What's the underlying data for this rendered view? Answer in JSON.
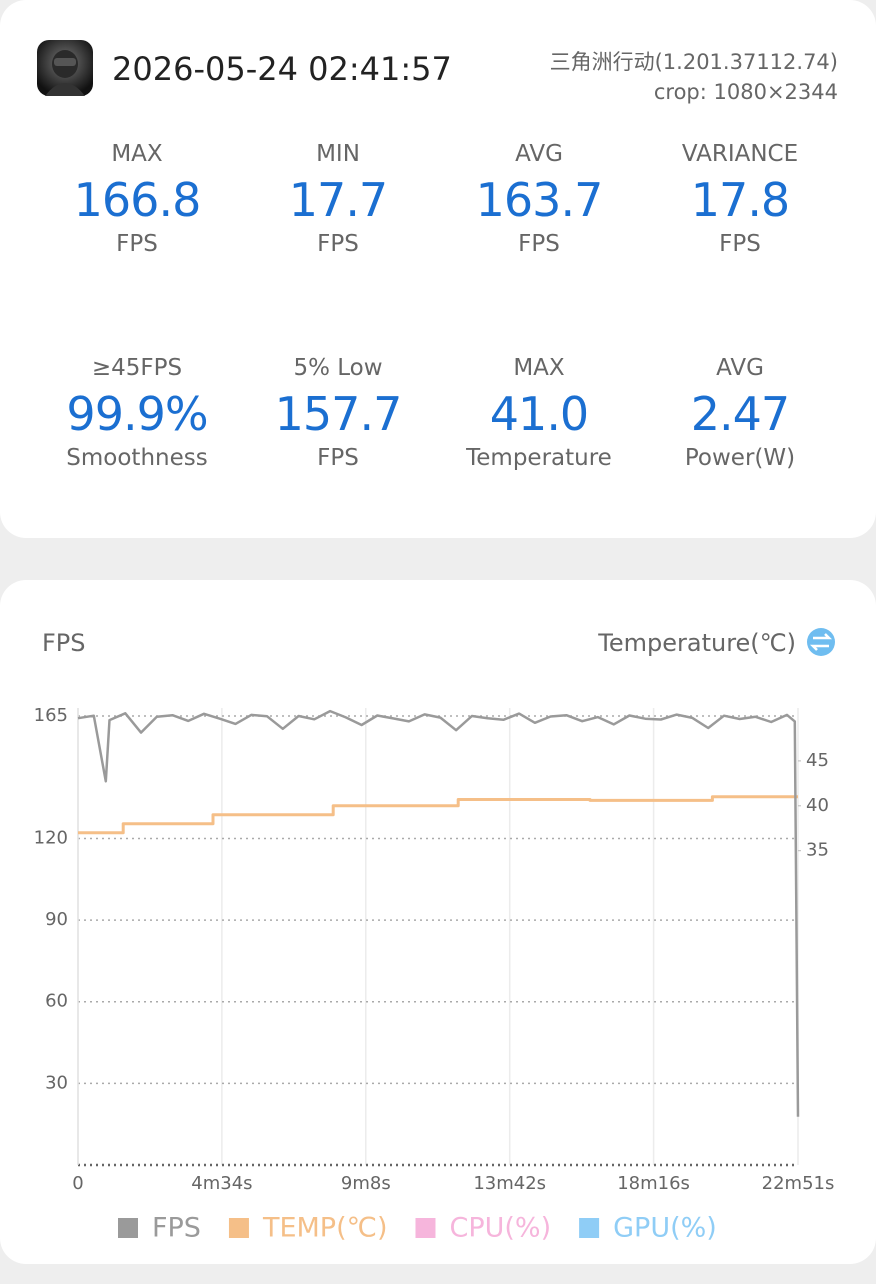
{
  "header": {
    "datetime": "2026-05-24 02:41:57",
    "app": "三角洲行动(1.201.37112.74)",
    "crop": "crop: 1080×2344"
  },
  "stats": [
    {
      "label": "MAX",
      "value": "166.8",
      "unit": "FPS"
    },
    {
      "label": "MIN",
      "value": "17.7",
      "unit": "FPS"
    },
    {
      "label": "AVG",
      "value": "163.7",
      "unit": "FPS"
    },
    {
      "label": "VARIANCE",
      "value": "17.8",
      "unit": "FPS"
    },
    {
      "label": "≥45FPS",
      "value": "99.9%",
      "unit": "Smoothness"
    },
    {
      "label": "5% Low",
      "value": "157.7",
      "unit": "FPS"
    },
    {
      "label": "MAX",
      "value": "41.0",
      "unit": "Temperature"
    },
    {
      "label": "AVG",
      "value": "2.47",
      "unit": "Power(W)"
    }
  ],
  "chart_data": {
    "type": "line",
    "y_label": "FPS",
    "y2_label": "Temperature(℃)",
    "xlim": [
      0,
      1371
    ],
    "xticks": [
      0,
      {
        "value": 274,
        "label": "4m34s"
      },
      {
        "value": 548,
        "label": "9m8s"
      },
      {
        "value": 822,
        "label": "13m42s"
      },
      {
        "value": 1096,
        "label": "18m16s"
      },
      {
        "value": 1371,
        "label": "22m51s"
      }
    ],
    "ylim": [
      0,
      165
    ],
    "yticks": [
      30,
      60,
      90,
      120,
      165
    ],
    "y2lim": [
      0,
      50
    ],
    "y2ticks": [
      35,
      40,
      45
    ],
    "grid": true,
    "series": [
      {
        "name": "FPS",
        "color": "#9a9a9a",
        "x": [
          0,
          30,
          53,
          60,
          90,
          120,
          150,
          180,
          210,
          240,
          270,
          300,
          330,
          360,
          390,
          420,
          450,
          480,
          510,
          540,
          570,
          600,
          630,
          660,
          690,
          720,
          750,
          780,
          810,
          840,
          870,
          900,
          930,
          960,
          990,
          1020,
          1050,
          1080,
          1110,
          1140,
          1170,
          1200,
          1230,
          1260,
          1290,
          1320,
          1350,
          1365,
          1371
        ],
        "values": [
          164.2,
          165.1,
          141.0,
          163.5,
          166.0,
          158.9,
          164.7,
          165.3,
          163.2,
          165.8,
          164.0,
          162.1,
          165.4,
          164.9,
          160.3,
          165.0,
          163.8,
          166.8,
          164.5,
          161.7,
          165.2,
          164.1,
          163.0,
          165.6,
          164.4,
          159.8,
          165.0,
          164.2,
          163.6,
          165.9,
          162.5,
          164.8,
          165.3,
          163.1,
          164.6,
          161.9,
          165.2,
          164.0,
          163.7,
          165.5,
          164.3,
          160.6,
          165.1,
          163.9,
          164.7,
          162.8,
          165.4,
          163.0,
          17.7
        ]
      },
      {
        "name": "TEMP(℃)",
        "color": "#f5bf88",
        "axis": "y2",
        "x": [
          0,
          86,
          86,
          257,
          257,
          486,
          486,
          724,
          724,
          975,
          975,
          1208,
          1208,
          1371
        ],
        "values": [
          37,
          37,
          38,
          38,
          39,
          39,
          40,
          40,
          40.7,
          40.7,
          40.6,
          40.6,
          41,
          41
        ]
      },
      {
        "name": "CPU(%)",
        "color": "#f6b5dc",
        "x": [],
        "values": []
      },
      {
        "name": "GPU(%)",
        "color": "#8fcdf6",
        "x": [],
        "values": []
      }
    ]
  }
}
